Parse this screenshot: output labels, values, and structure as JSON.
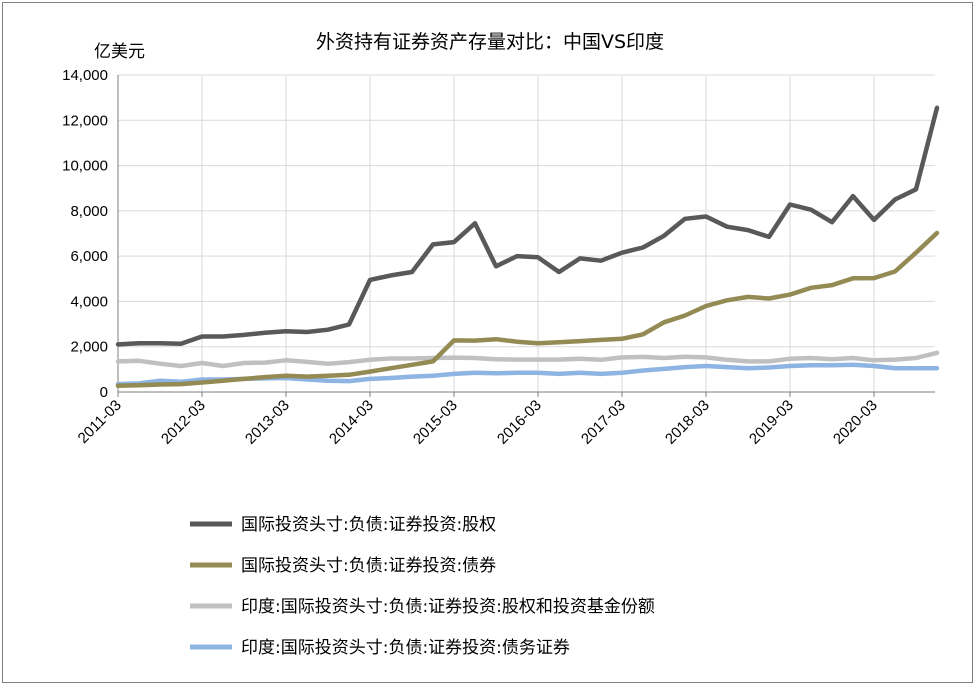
{
  "chart_data": {
    "type": "line",
    "title": "外资持有证券资产存量对比：中国VS印度",
    "ylabel": "亿美元",
    "ylim": [
      0,
      14000
    ],
    "yticks": [
      0,
      2000,
      4000,
      6000,
      8000,
      10000,
      12000,
      14000
    ],
    "xtick_labels": [
      "2011-03",
      "2012-03",
      "2013-03",
      "2014-03",
      "2015-03",
      "2016-03",
      "2017-03",
      "2018-03",
      "2019-03",
      "2020-03"
    ],
    "x": [
      "2011-03",
      "2011-06",
      "2011-09",
      "2011-12",
      "2012-03",
      "2012-06",
      "2012-09",
      "2012-12",
      "2013-03",
      "2013-06",
      "2013-09",
      "2013-12",
      "2014-03",
      "2014-06",
      "2014-09",
      "2014-12",
      "2015-03",
      "2015-06",
      "2015-09",
      "2015-12",
      "2016-03",
      "2016-06",
      "2016-09",
      "2016-12",
      "2017-03",
      "2017-06",
      "2017-09",
      "2017-12",
      "2018-03",
      "2018-06",
      "2018-09",
      "2018-12",
      "2019-03",
      "2019-06",
      "2019-09",
      "2019-12",
      "2020-03",
      "2020-06",
      "2020-09",
      "2020-12"
    ],
    "grid": true,
    "legend_position": "bottom",
    "series": [
      {
        "name": "国际投资头寸:负债:证券投资:股权",
        "color": "#595959",
        "values": [
          2100,
          2150,
          2150,
          2130,
          2450,
          2450,
          2520,
          2620,
          2680,
          2650,
          2750,
          2980,
          4950,
          5150,
          5300,
          6520,
          6620,
          7450,
          5550,
          6000,
          5950,
          5300,
          5900,
          5800,
          6150,
          6380,
          6900,
          7650,
          7750,
          7300,
          7150,
          6850,
          8280,
          8050,
          7500,
          8650,
          7600,
          8500,
          8950,
          12550
        ]
      },
      {
        "name": "国际投资头寸:负债:证券投资:债券",
        "color": "#948a54",
        "values": [
          280,
          300,
          330,
          350,
          420,
          500,
          580,
          660,
          720,
          680,
          720,
          760,
          900,
          1050,
          1200,
          1350,
          2280,
          2270,
          2330,
          2220,
          2150,
          2200,
          2250,
          2300,
          2350,
          2550,
          3080,
          3380,
          3800,
          4050,
          4200,
          4130,
          4300,
          4600,
          4720,
          5020,
          5030,
          5320,
          6150,
          7020
        ]
      },
      {
        "name": "印度:国际投资头寸:负债:证券投资:股权和投资基金份额",
        "color": "#c0c0c0",
        "values": [
          1350,
          1380,
          1250,
          1150,
          1280,
          1150,
          1280,
          1300,
          1400,
          1330,
          1250,
          1320,
          1420,
          1480,
          1480,
          1500,
          1520,
          1500,
          1450,
          1430,
          1430,
          1430,
          1470,
          1420,
          1530,
          1550,
          1500,
          1560,
          1530,
          1420,
          1350,
          1350,
          1470,
          1500,
          1450,
          1500,
          1400,
          1430,
          1500,
          1730
        ]
      },
      {
        "name": "印度:国际投资头寸:负债:证券投资:债务证券",
        "color": "#8db4e2",
        "values": [
          350,
          380,
          500,
          450,
          550,
          550,
          580,
          600,
          620,
          550,
          500,
          480,
          580,
          620,
          680,
          720,
          800,
          850,
          830,
          850,
          850,
          800,
          850,
          800,
          850,
          950,
          1020,
          1100,
          1150,
          1100,
          1050,
          1080,
          1150,
          1180,
          1180,
          1200,
          1150,
          1050,
          1050,
          1050
        ]
      }
    ]
  }
}
